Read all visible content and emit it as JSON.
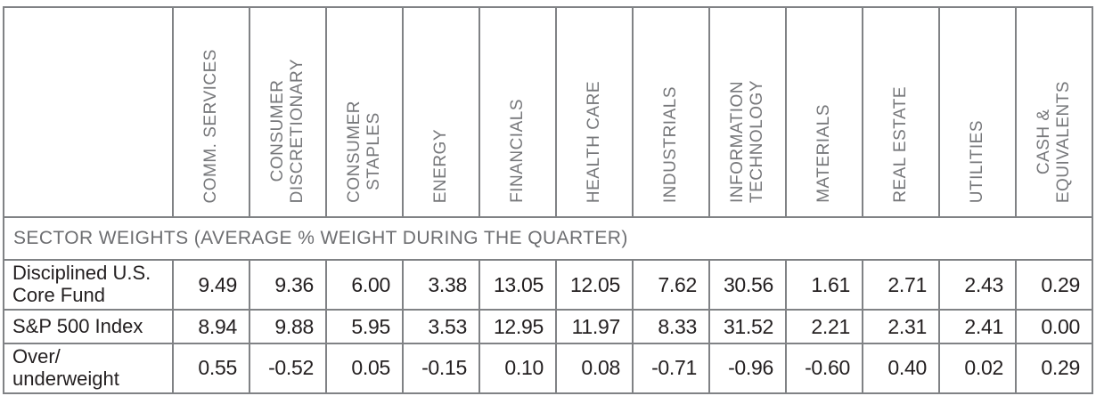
{
  "chart_data": {
    "type": "table",
    "title": "SECTOR WEIGHTS (AVERAGE % WEIGHT DURING THE QUARTER)",
    "columns": [
      "COMM. SERVICES",
      "CONSUMER\nDISCRETIONARY",
      "CONSUMER\nSTAPLES",
      "ENERGY",
      "FINANCIALS",
      "HEALTH CARE",
      "INDUSTRIALS",
      "INFORMATION\nTECHNOLOGY",
      "MATERIALS",
      "REAL ESTATE",
      "UTILITIES",
      "CASH &\nEQUIVALENTS"
    ],
    "rows": [
      {
        "label": "Disciplined U.S.\nCore Fund",
        "values": [
          "9.49",
          "9.36",
          "6.00",
          "3.38",
          "13.05",
          "12.05",
          "7.62",
          "30.56",
          "1.61",
          "2.71",
          "2.43",
          "0.29"
        ]
      },
      {
        "label": "S&P 500 Index",
        "values": [
          "8.94",
          "9.88",
          "5.95",
          "3.53",
          "12.95",
          "11.97",
          "8.33",
          "31.52",
          "2.21",
          "2.31",
          "2.41",
          "0.00"
        ]
      },
      {
        "label": "Over/\nunderweight",
        "values": [
          "0.55",
          "-0.52",
          "0.05",
          "-0.15",
          "0.10",
          "0.08",
          "-0.71",
          "-0.96",
          "-0.60",
          "0.40",
          "0.02",
          "0.29"
        ]
      }
    ]
  },
  "colors": {
    "header_text": "#77787b",
    "title_text": "#6d6e71",
    "data_text": "#231f20",
    "border": "#808285",
    "background": "#ffffff"
  }
}
